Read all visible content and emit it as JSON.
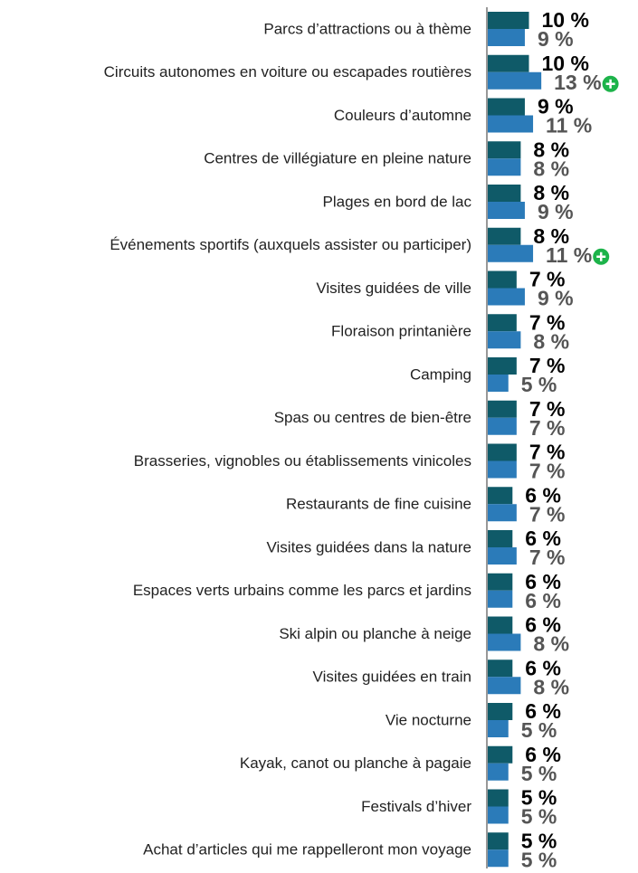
{
  "chart_data": {
    "type": "bar",
    "orientation": "horizontal",
    "categories": [
      "Parcs d’attractions ou à thème",
      "Circuits autonomes en voiture ou escapades routières",
      "Couleurs d’automne",
      "Centres de villégiature en pleine nature",
      "Plages en bord de lac",
      "Événements sportifs (auxquels assister ou participer)",
      "Visites guidées de ville",
      "Floraison printanière",
      "Camping",
      "Spas ou centres de bien-être",
      "Brasseries, vignobles ou établissements vinicoles",
      "Restaurants de fine cuisine",
      "Visites guidées dans la nature",
      "Espaces verts urbains comme les parcs et jardins",
      "Ski alpin ou planche à neige",
      "Visites guidées en train",
      "Vie nocturne",
      "Kayak, canot ou planche à pagaie",
      "Festivals d’hiver",
      "Achat d’articles qui me rappelleront mon voyage"
    ],
    "series": [
      {
        "color": "#0f5a68",
        "label_color": "#000000",
        "values": [
          10,
          10,
          9,
          8,
          8,
          8,
          7,
          7,
          7,
          7,
          7,
          6,
          6,
          6,
          6,
          6,
          6,
          6,
          5,
          5
        ],
        "value_labels": [
          "10 %",
          "10 %",
          "9 %",
          "8 %",
          "8 %",
          "8 %",
          "7 %",
          "7 %",
          "7 %",
          "7 %",
          "7 %",
          "6 %",
          "6 %",
          "6 %",
          "6 %",
          "6 %",
          "6 %",
          "6 %",
          "5 %",
          "5 %"
        ]
      },
      {
        "color": "#2b7bb9",
        "label_color": "#555555",
        "values": [
          9,
          13,
          11,
          8,
          9,
          11,
          9,
          8,
          5,
          7,
          7,
          7,
          7,
          6,
          8,
          8,
          5,
          5,
          5,
          5
        ],
        "value_labels": [
          "9 %",
          "13 %",
          "11 %",
          "8 %",
          "9 %",
          "11 %",
          "9 %",
          "8 %",
          "5 %",
          "7 %",
          "7 %",
          "7 %",
          "7 %",
          "6 %",
          "8 %",
          "8 %",
          "5 %",
          "5 %",
          "5 %",
          "5 %"
        ],
        "highlighted": [
          1,
          5
        ],
        "highlight_color": "#1db34a"
      }
    ]
  }
}
